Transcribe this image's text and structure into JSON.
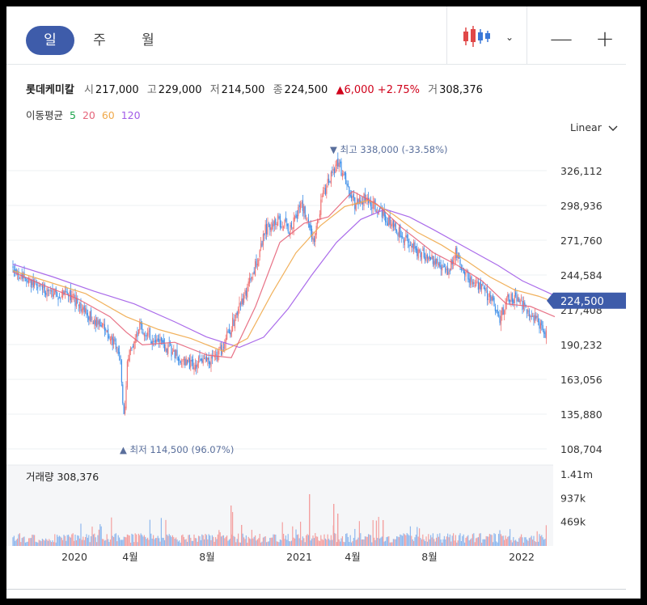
{
  "tabs": {
    "day": "일",
    "week": "주",
    "month": "월"
  },
  "toolbar": {
    "zoom_out": "—",
    "zoom_in": "+",
    "chevron": "⌄"
  },
  "stock": {
    "name": "롯데케미칼",
    "open_label": "시",
    "open": "217,000",
    "high_label": "고",
    "high": "229,000",
    "low_label": "저",
    "low": "214,500",
    "close_label": "종",
    "close": "224,500",
    "change": "▲6,000 +2.75%",
    "volume_label": "거",
    "volume": "308,376"
  },
  "ma": {
    "label": "이동평균",
    "p5": "5",
    "p20": "20",
    "p60": "60",
    "p120": "120"
  },
  "scale": "Linear",
  "colors": {
    "up": "#f07474",
    "down": "#3d8ee8",
    "ma5": "#19a34a",
    "ma20": "#e5647a",
    "ma60": "#f0a94a",
    "ma120": "#a15be8",
    "badge": "#3e5caa"
  },
  "chart_data": {
    "type": "candlestick",
    "y_ticks": [
      "326,112",
      "298,936",
      "271,760",
      "244,584",
      "217,408",
      "190,232",
      "163,056",
      "135,880",
      "108,704"
    ],
    "y_tick_values": [
      326112,
      298936,
      271760,
      244584,
      217408,
      190232,
      163056,
      135880,
      108704
    ],
    "x_ticks": [
      "2020",
      "4월",
      "8월",
      "2021",
      "4월",
      "8월",
      "2022"
    ],
    "current_price_label": "224,500",
    "current_price": 224500,
    "high_annotation": "▼ 최고 338,000 (-33.58%)",
    "high_value": 338000,
    "low_annotation": "▲ 최저 114,500 (96.07%)",
    "low_value": 114500,
    "volume_title": "거래량 308,376",
    "volume_ticks": [
      "1.41m",
      "937k",
      "469k"
    ],
    "volume_tick_values": [
      1410000,
      937000,
      469000
    ],
    "price_path": [
      [
        0,
        250000
      ],
      [
        20,
        242000
      ],
      [
        40,
        235000
      ],
      [
        60,
        228000
      ],
      [
        75,
        232000
      ],
      [
        90,
        220000
      ],
      [
        105,
        212000
      ],
      [
        120,
        203000
      ],
      [
        140,
        185000
      ],
      [
        145,
        130000
      ],
      [
        150,
        180000
      ],
      [
        165,
        205000
      ],
      [
        180,
        195000
      ],
      [
        200,
        188000
      ],
      [
        215,
        178000
      ],
      [
        230,
        175000
      ],
      [
        250,
        178000
      ],
      [
        265,
        185000
      ],
      [
        285,
        215000
      ],
      [
        305,
        245000
      ],
      [
        320,
        280000
      ],
      [
        335,
        288000
      ],
      [
        350,
        280000
      ],
      [
        365,
        300000
      ],
      [
        380,
        270000
      ],
      [
        390,
        305000
      ],
      [
        400,
        320000
      ],
      [
        410,
        332000
      ],
      [
        420,
        315000
      ],
      [
        430,
        300000
      ],
      [
        445,
        305000
      ],
      [
        460,
        295000
      ],
      [
        475,
        285000
      ],
      [
        490,
        275000
      ],
      [
        505,
        265000
      ],
      [
        520,
        258000
      ],
      [
        535,
        255000
      ],
      [
        545,
        245000
      ],
      [
        555,
        262000
      ],
      [
        570,
        243000
      ],
      [
        585,
        235000
      ],
      [
        600,
        225000
      ],
      [
        610,
        210000
      ],
      [
        620,
        228000
      ],
      [
        635,
        222000
      ],
      [
        650,
        215000
      ],
      [
        660,
        205000
      ],
      [
        665,
        195000
      ],
      [
        675,
        224500
      ]
    ],
    "ma20_path": [
      [
        0,
        247000
      ],
      [
        40,
        236000
      ],
      [
        80,
        226000
      ],
      [
        120,
        212000
      ],
      [
        140,
        200000
      ],
      [
        160,
        190000
      ],
      [
        200,
        192000
      ],
      [
        240,
        182000
      ],
      [
        270,
        180000
      ],
      [
        300,
        220000
      ],
      [
        330,
        270000
      ],
      [
        360,
        285000
      ],
      [
        390,
        290000
      ],
      [
        420,
        310000
      ],
      [
        450,
        300000
      ],
      [
        480,
        282000
      ],
      [
        520,
        262000
      ],
      [
        550,
        252000
      ],
      [
        580,
        240000
      ],
      [
        610,
        222000
      ],
      [
        640,
        220000
      ],
      [
        670,
        212000
      ]
    ],
    "ma60_path": [
      [
        0,
        248000
      ],
      [
        40,
        240000
      ],
      [
        90,
        230000
      ],
      [
        140,
        212000
      ],
      [
        180,
        202000
      ],
      [
        220,
        195000
      ],
      [
        260,
        185000
      ],
      [
        290,
        195000
      ],
      [
        320,
        230000
      ],
      [
        350,
        262000
      ],
      [
        380,
        283000
      ],
      [
        410,
        298000
      ],
      [
        440,
        303000
      ],
      [
        470,
        292000
      ],
      [
        500,
        278000
      ],
      [
        530,
        268000
      ],
      [
        560,
        256000
      ],
      [
        590,
        243000
      ],
      [
        620,
        233000
      ],
      [
        650,
        228000
      ],
      [
        675,
        222000
      ]
    ],
    "ma120_path": [
      [
        0,
        253000
      ],
      [
        50,
        243000
      ],
      [
        100,
        232000
      ],
      [
        150,
        222000
      ],
      [
        200,
        208000
      ],
      [
        240,
        196000
      ],
      [
        280,
        188000
      ],
      [
        310,
        196000
      ],
      [
        340,
        218000
      ],
      [
        370,
        245000
      ],
      [
        400,
        270000
      ],
      [
        430,
        288000
      ],
      [
        460,
        296000
      ],
      [
        490,
        290000
      ],
      [
        520,
        280000
      ],
      [
        560,
        266000
      ],
      [
        600,
        252000
      ],
      [
        630,
        240000
      ],
      [
        675,
        227000
      ]
    ]
  }
}
